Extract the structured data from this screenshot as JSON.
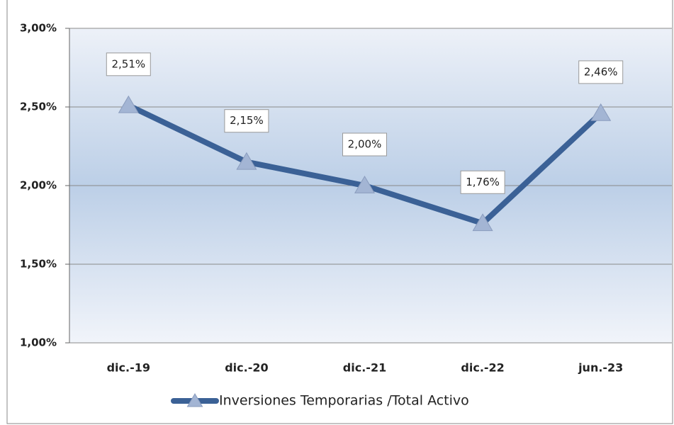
{
  "chart_data": {
    "type": "line",
    "categories": [
      "dic.-19",
      "dic.-20",
      "dic.-21",
      "dic.-22",
      "jun.-23"
    ],
    "series": [
      {
        "name": "Inversiones Temporarias /Total Activo",
        "color": "#3b6196",
        "marker_color": "#a3b5d4",
        "values": [
          2.51,
          2.15,
          2.0,
          1.76,
          2.46
        ],
        "value_labels": [
          "2,51%",
          "2,15%",
          "2,00%",
          "1,76%",
          "2,46%"
        ]
      }
    ],
    "ylim": [
      1,
      3
    ],
    "yticks": [
      {
        "value": 1,
        "label": "1,00%"
      },
      {
        "value": 1.5,
        "label": "1,50%"
      },
      {
        "value": 2,
        "label": "2,00%"
      },
      {
        "value": 2.5,
        "label": "2,50%"
      },
      {
        "value": 3,
        "label": "3,00%"
      }
    ],
    "grid": true,
    "legend": "bottom"
  }
}
